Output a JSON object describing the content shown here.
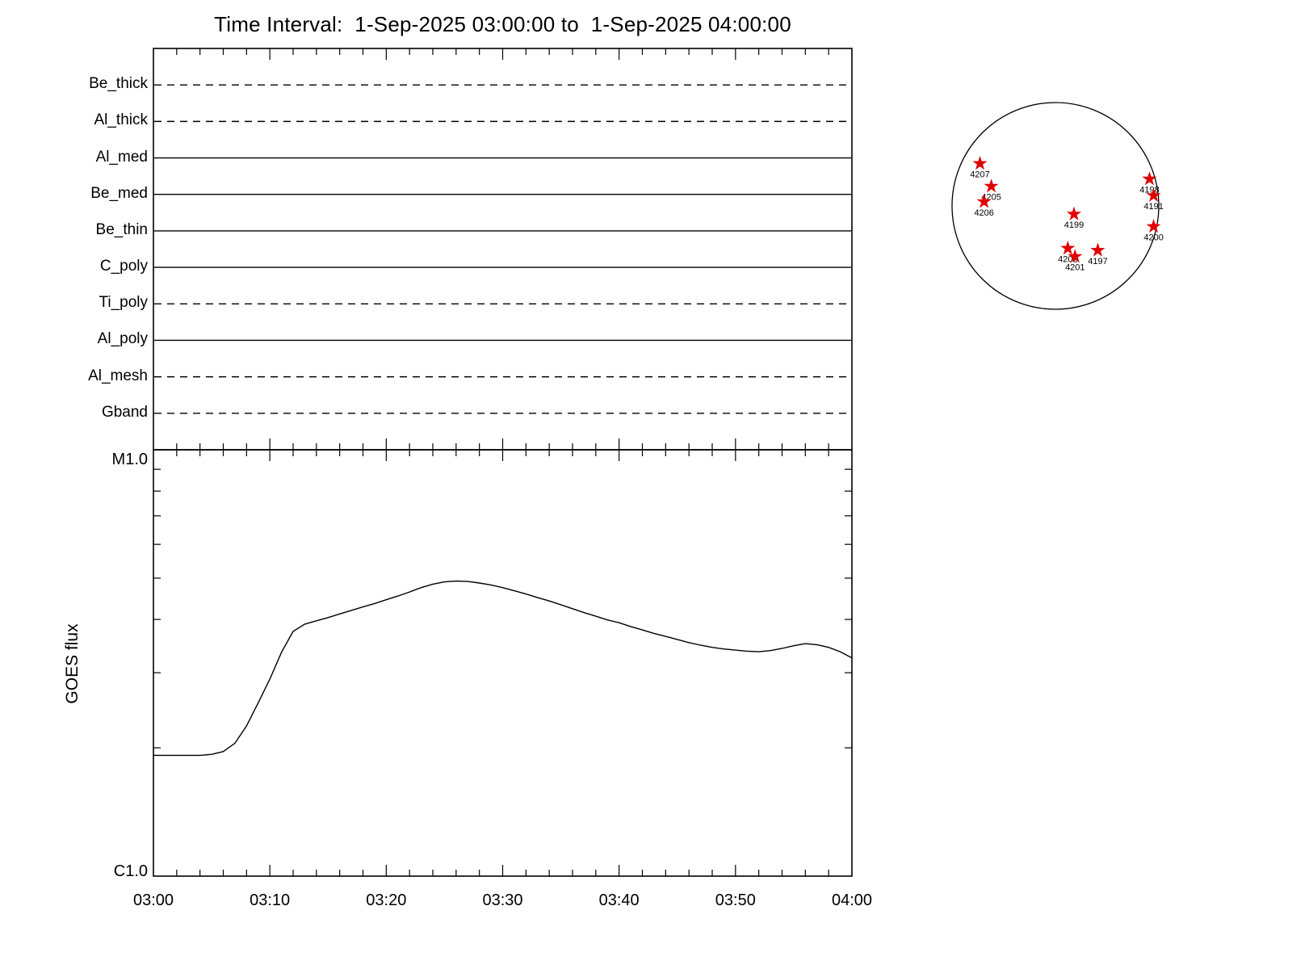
{
  "title": "Time Interval:  1-Sep-2025 03:00:00 to  1-Sep-2025 04:00:00",
  "chart_data": {
    "type": "line",
    "x_axis": {
      "start_time": "03:00",
      "end_time": "04:00",
      "tick_labels": [
        "03:00",
        "03:10",
        "03:20",
        "03:30",
        "03:40",
        "03:50",
        "04:00"
      ],
      "major_tick_minutes": 10,
      "minor_tick_minutes": 2,
      "total_minutes": 60
    },
    "filter_panel": {
      "filters": [
        {
          "label": "Be_thick",
          "line_style": "dashed"
        },
        {
          "label": "Al_thick",
          "line_style": "dashed"
        },
        {
          "label": "Al_med",
          "line_style": "solid"
        },
        {
          "label": "Be_med",
          "line_style": "solid"
        },
        {
          "label": "Be_thin",
          "line_style": "solid"
        },
        {
          "label": "C_poly",
          "line_style": "solid"
        },
        {
          "label": "Ti_poly",
          "line_style": "dashed"
        },
        {
          "label": "Al_poly",
          "line_style": "solid"
        },
        {
          "label": "Al_mesh",
          "line_style": "dashed"
        },
        {
          "label": "Gband",
          "line_style": "dashed"
        }
      ]
    },
    "goes_panel": {
      "ylabel": "GOES flux",
      "y_scale": "log",
      "y_top_label": "M1.0",
      "y_bottom_label": "C1.0",
      "minor_tick_decade_positions": [
        2,
        3,
        4,
        5,
        6,
        7,
        8,
        9
      ],
      "series": {
        "name": "GOES flux",
        "units": "GOES C-class (C1.0 bottom axis, M1.0 top axis, log scale)",
        "t_minutes": [
          0,
          1,
          2,
          3,
          4,
          5,
          6,
          7,
          8,
          9,
          10,
          11,
          12,
          13,
          14,
          15,
          16,
          17,
          18,
          19,
          20,
          21,
          22,
          23,
          24,
          25,
          26,
          27,
          28,
          29,
          30,
          31,
          32,
          33,
          34,
          35,
          36,
          37,
          38,
          39,
          40,
          41,
          42,
          43,
          44,
          45,
          46,
          47,
          48,
          49,
          50,
          51,
          52,
          53,
          54,
          55,
          56,
          57,
          58,
          59,
          60
        ],
        "c_class": [
          1.92,
          1.92,
          1.92,
          1.92,
          1.92,
          1.93,
          1.96,
          2.05,
          2.25,
          2.55,
          2.9,
          3.35,
          3.75,
          3.9,
          3.97,
          4.04,
          4.12,
          4.2,
          4.28,
          4.36,
          4.45,
          4.54,
          4.64,
          4.75,
          4.84,
          4.9,
          4.92,
          4.91,
          4.87,
          4.82,
          4.75,
          4.67,
          4.59,
          4.5,
          4.42,
          4.33,
          4.24,
          4.15,
          4.07,
          3.99,
          3.93,
          3.85,
          3.78,
          3.71,
          3.65,
          3.59,
          3.53,
          3.48,
          3.44,
          3.41,
          3.39,
          3.37,
          3.36,
          3.38,
          3.42,
          3.47,
          3.51,
          3.49,
          3.44,
          3.36,
          3.25
        ]
      }
    }
  },
  "solar_disk": {
    "star_color": "#e00000",
    "regions": [
      {
        "label": "4207",
        "fx": -0.73,
        "fy": -0.41
      },
      {
        "label": "4205",
        "fx": -0.62,
        "fy": -0.19
      },
      {
        "label": "4206",
        "fx": -0.69,
        "fy": -0.04
      },
      {
        "label": "4199",
        "fx": 0.18,
        "fy": 0.08
      },
      {
        "label": "4198",
        "fx": 0.91,
        "fy": -0.26
      },
      {
        "label": "4191",
        "fx": 0.95,
        "fy": -0.1
      },
      {
        "label": "4200",
        "fx": 0.95,
        "fy": 0.2
      },
      {
        "label": "4202",
        "fx": 0.12,
        "fy": 0.41
      },
      {
        "label": "4201",
        "fx": 0.19,
        "fy": 0.49
      },
      {
        "label": "4197",
        "fx": 0.41,
        "fy": 0.43
      }
    ]
  }
}
